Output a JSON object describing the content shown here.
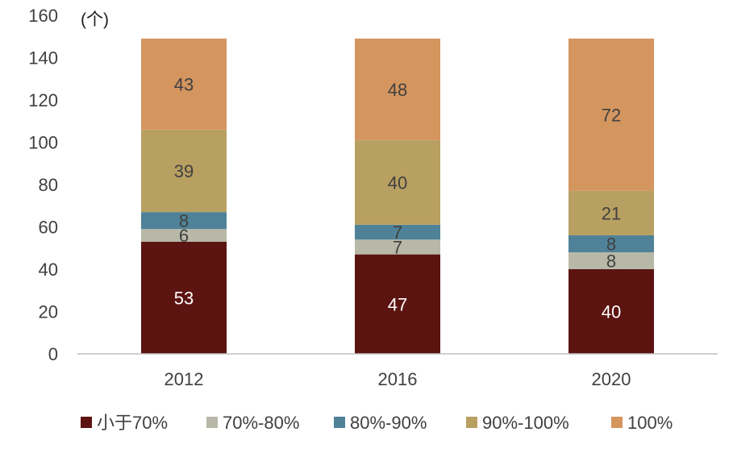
{
  "chart_data": {
    "type": "bar",
    "stacked": true,
    "unit_label": "(个)",
    "categories": [
      "2012",
      "2016",
      "2020"
    ],
    "ylim": [
      0,
      160
    ],
    "yticks": [
      0,
      20,
      40,
      60,
      80,
      100,
      120,
      140,
      160
    ],
    "grid": false,
    "legend_position": "bottom",
    "series": [
      {
        "name": "小于70%",
        "values": [
          53,
          47,
          40
        ],
        "color": "#5C1411",
        "label_color": "#ffffff"
      },
      {
        "name": "70%-80%",
        "values": [
          6,
          7,
          8
        ],
        "color": "#B8B8A8",
        "label_color": "#404040"
      },
      {
        "name": "80%-90%",
        "values": [
          8,
          7,
          8
        ],
        "color": "#4F8298",
        "label_color": "#404040"
      },
      {
        "name": "90%-100%",
        "values": [
          39,
          40,
          21
        ],
        "color": "#B8A062",
        "label_color": "#404040"
      },
      {
        "name": "100%",
        "values": [
          43,
          48,
          72
        ],
        "color": "#D4955F",
        "label_color": "#404040"
      }
    ]
  }
}
